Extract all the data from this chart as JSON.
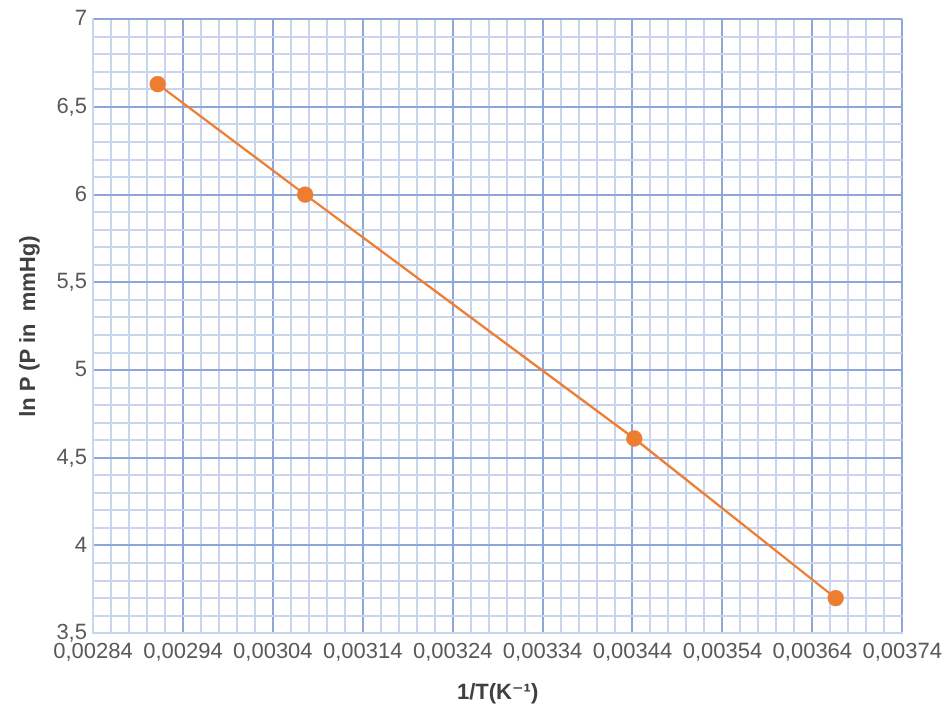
{
  "chart_data": {
    "type": "line",
    "xlabel": "1/T(K⁻¹)",
    "ylabel": "ln P (P in  mmHg)",
    "x": [
      0.002912,
      0.003076,
      0.003442,
      0.003666
    ],
    "series": [
      {
        "color": "#ed7d31",
        "values": [
          6.63,
          6.0,
          4.61,
          3.7
        ]
      }
    ],
    "xlim": [
      0.00284,
      0.00374
    ],
    "xticks": [
      {
        "value": 0.00284,
        "label": "0,00284"
      },
      {
        "value": 0.00286,
        "label": null
      },
      {
        "value": 0.00288,
        "label": null
      },
      {
        "value": 0.0029,
        "label": null
      },
      {
        "value": 0.00292,
        "label": null
      },
      {
        "value": 0.00294,
        "label": "0,00294"
      },
      {
        "value": 0.00296,
        "label": null
      },
      {
        "value": 0.00298,
        "label": null
      },
      {
        "value": 0.003,
        "label": null
      },
      {
        "value": 0.00302,
        "label": null
      },
      {
        "value": 0.00304,
        "label": "0,00304"
      },
      {
        "value": 0.00306,
        "label": null
      },
      {
        "value": 0.00308,
        "label": null
      },
      {
        "value": 0.0031,
        "label": null
      },
      {
        "value": 0.00312,
        "label": null
      },
      {
        "value": 0.00314,
        "label": "0,00314"
      },
      {
        "value": 0.00316,
        "label": null
      },
      {
        "value": 0.00318,
        "label": null
      },
      {
        "value": 0.0032,
        "label": null
      },
      {
        "value": 0.00322,
        "label": null
      },
      {
        "value": 0.00324,
        "label": "0,00324"
      },
      {
        "value": 0.00326,
        "label": null
      },
      {
        "value": 0.00328,
        "label": null
      },
      {
        "value": 0.0033,
        "label": null
      },
      {
        "value": 0.00332,
        "label": null
      },
      {
        "value": 0.00334,
        "label": "0,00334"
      },
      {
        "value": 0.00336,
        "label": null
      },
      {
        "value": 0.00338,
        "label": null
      },
      {
        "value": 0.0034,
        "label": null
      },
      {
        "value": 0.00342,
        "label": null
      },
      {
        "value": 0.00344,
        "label": "0,00344"
      },
      {
        "value": 0.00346,
        "label": null
      },
      {
        "value": 0.00348,
        "label": null
      },
      {
        "value": 0.0035,
        "label": null
      },
      {
        "value": 0.00352,
        "label": null
      },
      {
        "value": 0.00354,
        "label": "0,00354"
      },
      {
        "value": 0.00356,
        "label": null
      },
      {
        "value": 0.00358,
        "label": null
      },
      {
        "value": 0.0036,
        "label": null
      },
      {
        "value": 0.00362,
        "label": null
      },
      {
        "value": 0.00364,
        "label": "0,00364"
      },
      {
        "value": 0.00366,
        "label": null
      },
      {
        "value": 0.00368,
        "label": null
      },
      {
        "value": 0.0037,
        "label": null
      },
      {
        "value": 0.00372,
        "label": null
      },
      {
        "value": 0.00374,
        "label": "0,00374"
      }
    ],
    "ylim": [
      3.5,
      7
    ],
    "yticks": [
      {
        "value": 3.5,
        "label": "3,5"
      },
      {
        "value": 3.6,
        "label": null
      },
      {
        "value": 3.7,
        "label": null
      },
      {
        "value": 3.8,
        "label": null
      },
      {
        "value": 3.9,
        "label": null
      },
      {
        "value": 4,
        "label": "4"
      },
      {
        "value": 4.1,
        "label": null
      },
      {
        "value": 4.2,
        "label": null
      },
      {
        "value": 4.3,
        "label": null
      },
      {
        "value": 4.4,
        "label": null
      },
      {
        "value": 4.5,
        "label": "4,5"
      },
      {
        "value": 4.6,
        "label": null
      },
      {
        "value": 4.7,
        "label": null
      },
      {
        "value": 4.8,
        "label": null
      },
      {
        "value": 4.9,
        "label": null
      },
      {
        "value": 5,
        "label": "5"
      },
      {
        "value": 5.1,
        "label": null
      },
      {
        "value": 5.2,
        "label": null
      },
      {
        "value": 5.3,
        "label": null
      },
      {
        "value": 5.4,
        "label": null
      },
      {
        "value": 5.5,
        "label": "5,5"
      },
      {
        "value": 5.6,
        "label": null
      },
      {
        "value": 5.7,
        "label": null
      },
      {
        "value": 5.8,
        "label": null
      },
      {
        "value": 5.9,
        "label": null
      },
      {
        "value": 6,
        "label": "6"
      },
      {
        "value": 6.1,
        "label": null
      },
      {
        "value": 6.2,
        "label": null
      },
      {
        "value": 6.3,
        "label": null
      },
      {
        "value": 6.4,
        "label": null
      },
      {
        "value": 6.5,
        "label": "6,5"
      },
      {
        "value": 6.6,
        "label": null
      },
      {
        "value": 6.7,
        "label": null
      },
      {
        "value": 6.8,
        "label": null
      },
      {
        "value": 6.9,
        "label": null
      },
      {
        "value": 7,
        "label": "7"
      }
    ],
    "grid": true,
    "legend": false,
    "marker": "circle",
    "line_style": "solid"
  }
}
